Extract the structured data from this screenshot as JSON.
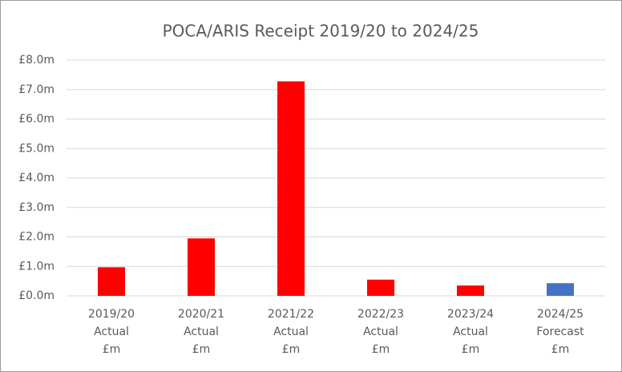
{
  "chart_data": {
    "type": "bar",
    "title": "POCA/ARIS Receipt 2019/20 to 2024/25",
    "categories": [
      [
        "2019/20",
        "Actual",
        "£m"
      ],
      [
        "2020/21",
        "Actual",
        "£m"
      ],
      [
        "2021/22",
        "Actual",
        "£m"
      ],
      [
        "2022/23",
        "Actual",
        "£m"
      ],
      [
        "2023/24",
        "Actual",
        "£m"
      ],
      [
        "2024/25",
        "Forecast",
        "£m"
      ]
    ],
    "values": [
      0.97,
      1.95,
      7.28,
      0.55,
      0.35,
      0.43
    ],
    "colors": [
      "#ff0000",
      "#ff0000",
      "#ff0000",
      "#ff0000",
      "#ff0000",
      "#4472c4"
    ],
    "ylim": [
      0,
      8
    ],
    "yticks": [
      {
        "value": 0,
        "label": "£0.0m"
      },
      {
        "value": 1,
        "label": "£1.0m"
      },
      {
        "value": 2,
        "label": "£2.0m"
      },
      {
        "value": 3,
        "label": "£3.0m"
      },
      {
        "value": 4,
        "label": "£4.0m"
      },
      {
        "value": 5,
        "label": "£5.0m"
      },
      {
        "value": 6,
        "label": "£6.0m"
      },
      {
        "value": 7,
        "label": "£7.0m"
      },
      {
        "value": 8,
        "label": "£8.0m"
      }
    ],
    "grid": true
  }
}
